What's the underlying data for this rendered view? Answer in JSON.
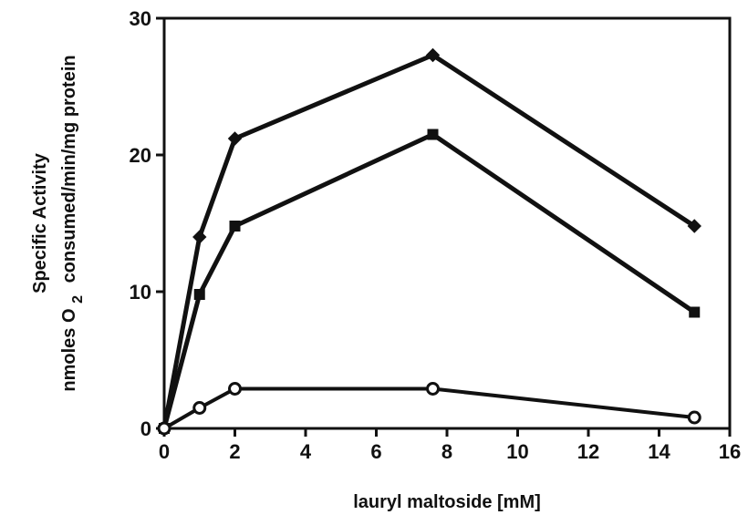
{
  "chart_data": {
    "type": "line",
    "xlabel": "lauryl maltoside [mM]",
    "ylabel": {
      "line1": "Specific Activity",
      "line2_prefix": "nmoles O",
      "line2_subscript": "2",
      "line2_suffix": "consumed/min/mg protein"
    },
    "xlim": [
      0,
      16
    ],
    "ylim": [
      0,
      30
    ],
    "xticks": [
      0,
      2,
      4,
      6,
      8,
      10,
      12,
      14,
      16
    ],
    "yticks": [
      0,
      10,
      20,
      30
    ],
    "grid": false,
    "series": [
      {
        "marker": "diamond-filled",
        "color": "#111111",
        "x": [
          0,
          1,
          2,
          7.6,
          15
        ],
        "y": [
          0,
          14,
          21.2,
          27.3,
          14.8
        ]
      },
      {
        "marker": "square-filled",
        "color": "#111111",
        "x": [
          0,
          1,
          2,
          7.6,
          15
        ],
        "y": [
          0,
          9.8,
          14.8,
          21.5,
          8.5
        ]
      },
      {
        "marker": "circle-open",
        "color": "#111111",
        "x": [
          0,
          1,
          2,
          7.6,
          15
        ],
        "y": [
          0,
          1.5,
          2.9,
          2.9,
          0.8
        ]
      }
    ]
  }
}
